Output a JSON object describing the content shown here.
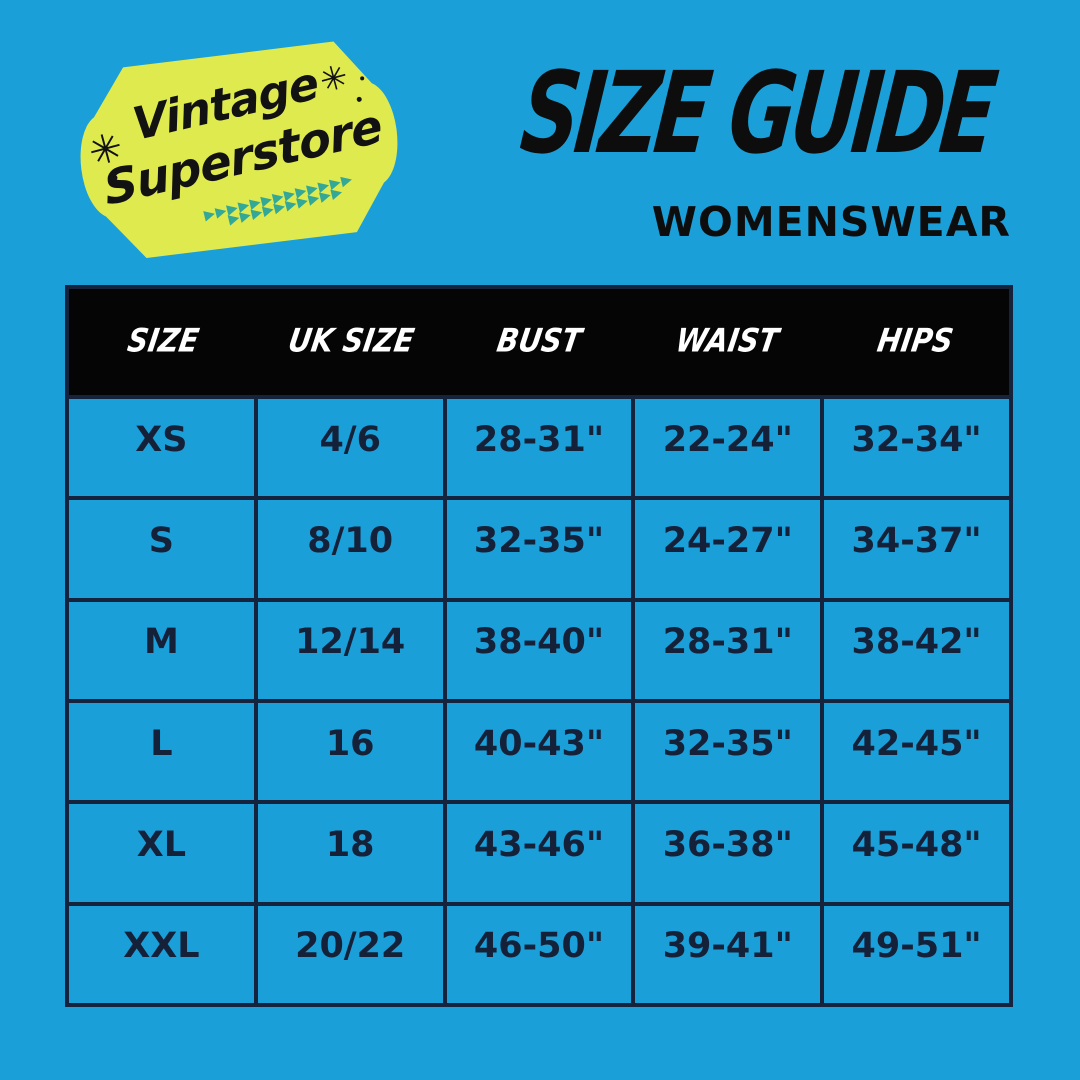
{
  "theme": {
    "background_color": "#1A9FD9",
    "badge_color": "#DFEA4F",
    "border_color": "#15233D",
    "cell_text_color": "#142138",
    "header_bg_color": "#050505",
    "header_text_color": "#FFFFFF",
    "arrow_color": "#34A896",
    "title_color": "#0D0D0D"
  },
  "logo": {
    "line1": "Vintage",
    "line2": "Superstore",
    "sparkle_icon": "✳",
    "arrow_icon": "▶",
    "arrow_row1": "▶▶▶▶▶▶▶▶▶▶▶▶▶",
    "arrow_row2": "▶▶▶▶▶▶▶▶▶▶"
  },
  "title": {
    "heading": "SIZE GUIDE",
    "subheading": "WOMENSWEAR"
  },
  "table": {
    "columns": [
      "SIZE",
      "UK SIZE",
      "BUST",
      "WAIST",
      "HIPS"
    ],
    "rows": [
      [
        "XS",
        "4/6",
        "28-31\"",
        "22-24\"",
        "32-34\""
      ],
      [
        "S",
        "8/10",
        "32-35\"",
        "24-27\"",
        "34-37\""
      ],
      [
        "M",
        "12/14",
        "38-40\"",
        "28-31\"",
        "38-42\""
      ],
      [
        "L",
        "16",
        "40-43\"",
        "32-35\"",
        "42-45\""
      ],
      [
        "XL",
        "18",
        "43-46\"",
        "36-38\"",
        "45-48\""
      ],
      [
        "XXL",
        "20/22",
        "46-50\"",
        "39-41\"",
        "49-51\""
      ]
    ]
  }
}
